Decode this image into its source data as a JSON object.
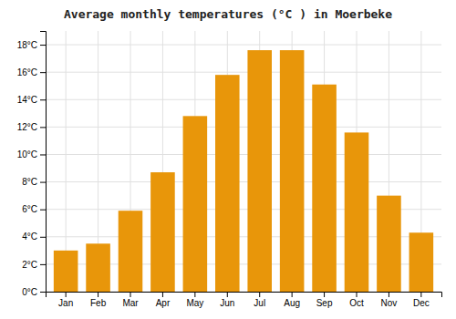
{
  "chart_data": {
    "type": "bar",
    "title": "Average monthly temperatures (°C ) in Moerbeke",
    "categories": [
      "Jan",
      "Feb",
      "Mar",
      "Apr",
      "May",
      "Jun",
      "Jul",
      "Aug",
      "Sep",
      "Oct",
      "Nov",
      "Dec"
    ],
    "values": [
      3.0,
      3.5,
      5.9,
      8.7,
      12.8,
      15.8,
      17.6,
      17.6,
      15.1,
      11.6,
      7.0,
      4.3
    ],
    "color": "#E8960A",
    "ylim": [
      0,
      19
    ],
    "yticks": [
      {
        "value": 0,
        "label": "0°C"
      },
      {
        "value": 2,
        "label": "2°C"
      },
      {
        "value": 4,
        "label": "4°C"
      },
      {
        "value": 6,
        "label": "6°C"
      },
      {
        "value": 8,
        "label": "8°C"
      },
      {
        "value": 10,
        "label": "10°C"
      },
      {
        "value": 12,
        "label": "12°C"
      },
      {
        "value": 14,
        "label": "14°C"
      },
      {
        "value": 16,
        "label": "16°C"
      },
      {
        "value": 18,
        "label": "18°C"
      }
    ],
    "grid": true
  }
}
